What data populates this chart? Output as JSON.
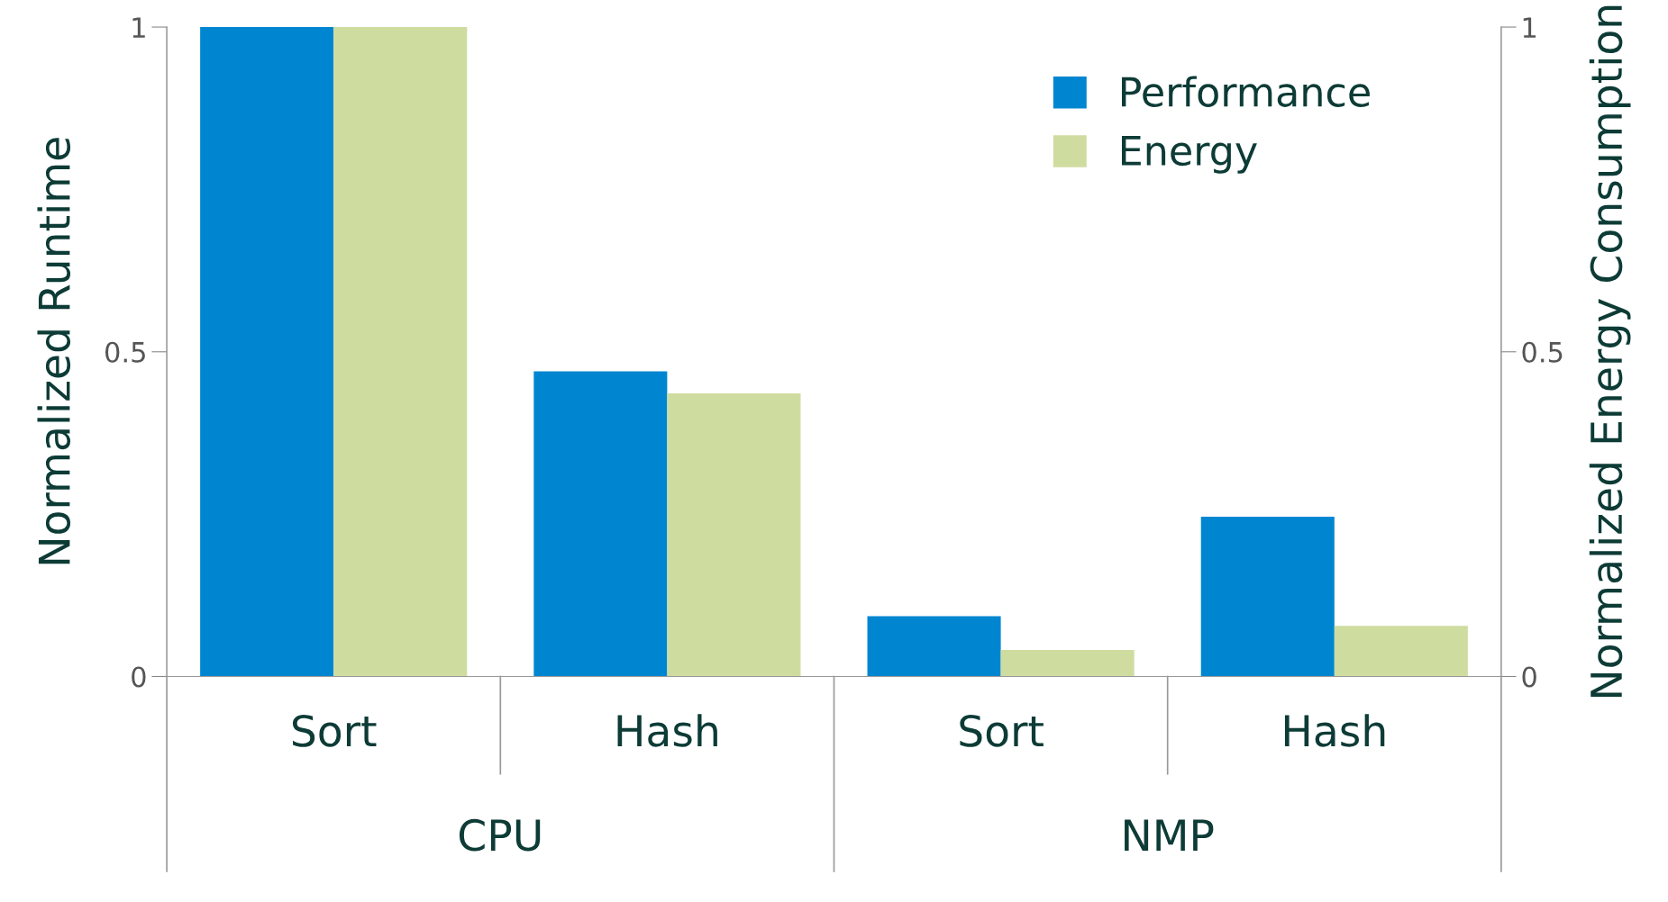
{
  "chart_data": {
    "type": "bar",
    "ylabel": "Normalized Runtime",
    "y2label": "Normalized Energy Consumption",
    "categories": [
      "Sort",
      "Hash",
      "Sort",
      "Hash"
    ],
    "series": [
      {
        "name": "Performance",
        "color": "#0086d1",
        "values": [
          1.0,
          0.47,
          0.093,
          0.246
        ]
      },
      {
        "name": "Energy",
        "color": "#cfdca0",
        "axis": "y2",
        "values": [
          1.0,
          0.436,
          0.041,
          0.078
        ]
      }
    ],
    "ylim": [
      0,
      1
    ],
    "yticks": [
      0,
      0.5,
      1
    ],
    "y2lim": [
      0,
      1
    ],
    "y2ticks": [
      0,
      0.5,
      1
    ],
    "annotations": [
      "CPU",
      "NMP"
    ],
    "grid": false,
    "legend": "top right"
  }
}
